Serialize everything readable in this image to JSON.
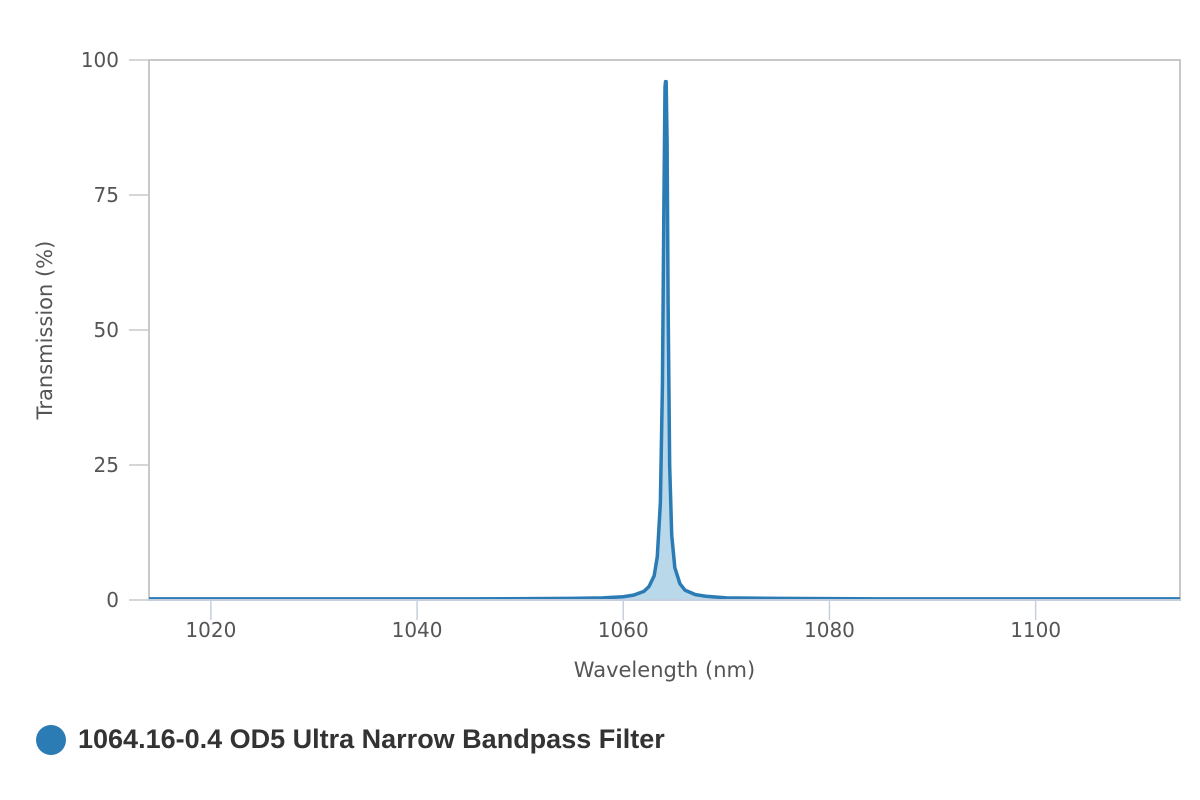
{
  "chart_data": {
    "type": "area",
    "title": "",
    "xlabel": "Wavelength (nm)",
    "ylabel": "Transmission (%)",
    "xlim": [
      1014,
      1114
    ],
    "ylim": [
      0,
      100
    ],
    "x_ticks": [
      1020,
      1040,
      1060,
      1080,
      1100
    ],
    "y_ticks": [
      0,
      25,
      50,
      75,
      100
    ],
    "grid": false,
    "legend_position": "bottom-left",
    "series": [
      {
        "name": "1064.16-0.4 OD5 Ultra Narrow Bandpass Filter",
        "color": "#2b7bb5",
        "fill_color": "#b9d9ea",
        "x": [
          1014,
          1030,
          1045,
          1055,
          1058,
          1060,
          1061,
          1062,
          1062.5,
          1063,
          1063.3,
          1063.6,
          1063.8,
          1063.95,
          1064.05,
          1064.1,
          1064.16,
          1064.25,
          1064.35,
          1064.5,
          1064.7,
          1065,
          1065.5,
          1066,
          1067,
          1068,
          1070,
          1075,
          1085,
          1100,
          1114
        ],
        "y": [
          0.2,
          0.2,
          0.2,
          0.3,
          0.4,
          0.6,
          0.9,
          1.6,
          2.5,
          4.5,
          8,
          18,
          40,
          75,
          95,
          96,
          96,
          85,
          55,
          25,
          12,
          6,
          3,
          1.8,
          1,
          0.7,
          0.4,
          0.3,
          0.2,
          0.2,
          0.2
        ]
      }
    ]
  }
}
